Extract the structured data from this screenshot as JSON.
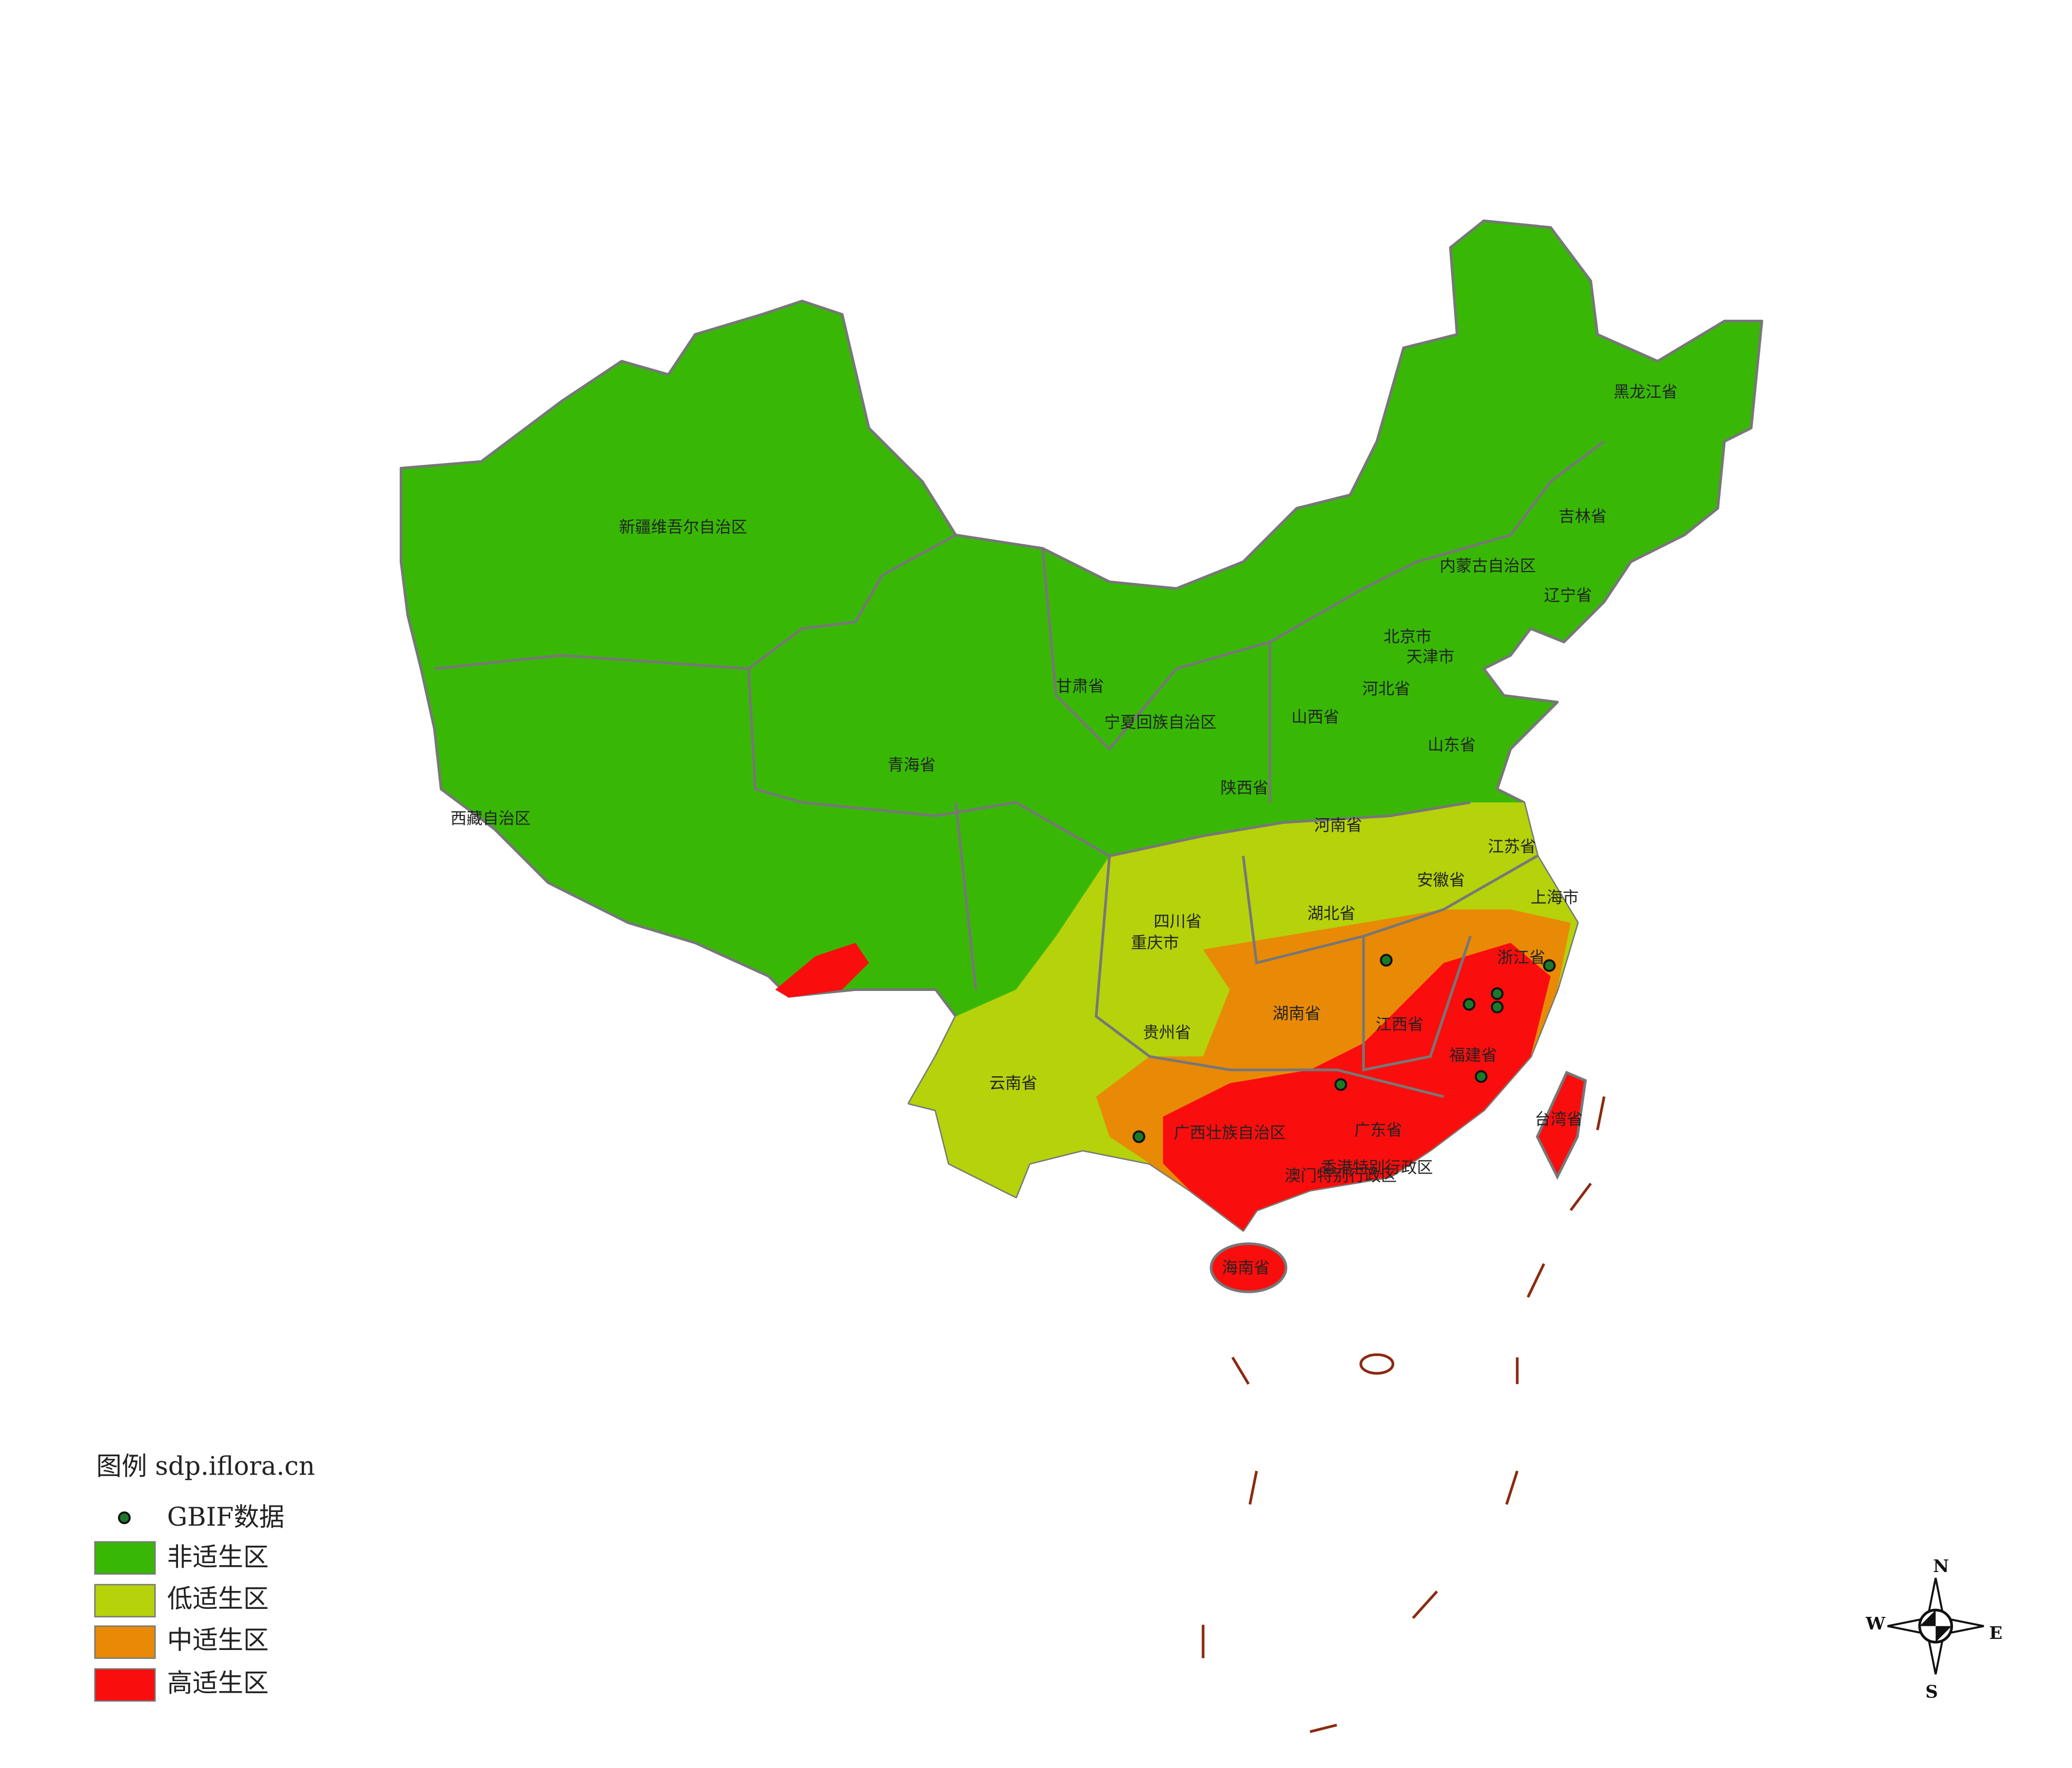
{
  "legend": {
    "title": "图例 sdp.iflora.cn",
    "items": [
      "GBIF数据",
      "非适生区",
      "低适生区",
      "中适生区",
      "高适生区"
    ]
  },
  "labels": [
    "新疆维吾尔自治区",
    "西藏自治区",
    "青海省",
    "甘肃省",
    "宁夏回族自治区",
    "内蒙古自治区",
    "黑龙江省",
    "吉林省",
    "辽宁省",
    "北京市",
    "天津市",
    "河北省",
    "山西省",
    "山东省",
    "陕西省",
    "河南省",
    "江苏省",
    "安徽省",
    "上海市",
    "湖北省",
    "四川省",
    "重庆市",
    "浙江省",
    "湖南省",
    "江西省",
    "贵州省",
    "福建省",
    "云南省",
    "台湾省",
    "广西壮族自治区",
    "广东省",
    "香港特别行政区",
    "澳门特别行政区",
    "海南省"
  ],
  "compass": {
    "north": "N",
    "south": "S",
    "east": "E",
    "west": "W"
  }
}
